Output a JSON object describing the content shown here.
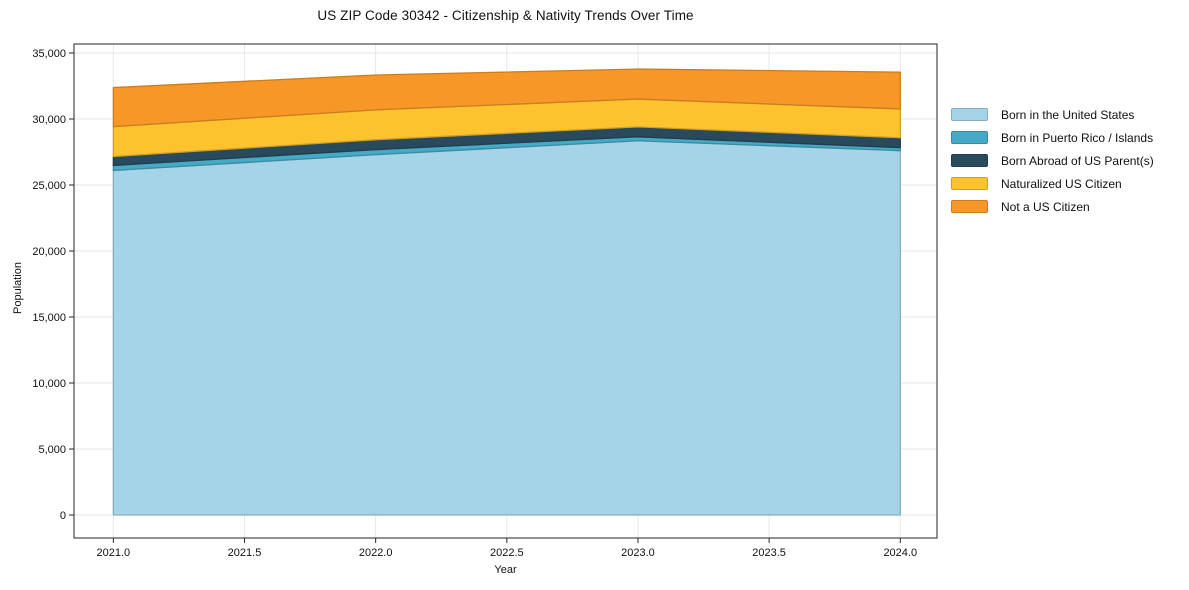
{
  "chart_data": {
    "type": "area",
    "stacked": true,
    "title": "US ZIP Code 30342 - Citizenship & Nativity Trends Over Time",
    "xlabel": "Year",
    "ylabel": "Population",
    "x": [
      2021,
      2022,
      2023,
      2024
    ],
    "series": [
      {
        "name": "Born in the United States",
        "color": "#a5d4e8",
        "values": [
          26100,
          27300,
          28350,
          27600
        ]
      },
      {
        "name": "Born in Puerto Rico / Islands",
        "color": "#45aac5",
        "values": [
          380,
          380,
          300,
          230
        ]
      },
      {
        "name": "Born Abroad of US Parent(s)",
        "color": "#29495c",
        "values": [
          680,
          750,
          750,
          750
        ]
      },
      {
        "name": "Naturalized US Citizen",
        "color": "#fdc32f",
        "values": [
          2260,
          2260,
          2110,
          2180
        ]
      },
      {
        "name": "Not a US Citizen",
        "color": "#f79727",
        "values": [
          2960,
          2640,
          2270,
          2790
        ]
      }
    ],
    "totals": [
      32380,
      33330,
      33780,
      33550
    ],
    "xlim": [
      2020.85,
      2024.14
    ],
    "ylim": [
      -1740,
      35680
    ],
    "x_ticks": [
      2021.0,
      2021.5,
      2022.0,
      2022.5,
      2023.0,
      2023.5,
      2024.0
    ],
    "x_tick_labels": [
      "2021.0",
      "2021.5",
      "2022.0",
      "2022.5",
      "2023.0",
      "2023.5",
      "2024.0"
    ],
    "y_ticks": [
      0,
      5000,
      10000,
      15000,
      20000,
      25000,
      30000,
      35000
    ],
    "y_tick_labels": [
      "0",
      "5,000",
      "10,000",
      "15,000",
      "20,000",
      "25,000",
      "30,000",
      "35,000"
    ],
    "grid": true,
    "grid_color": "#e7e7e7",
    "spine_color": "#262626",
    "legend_position": "right"
  }
}
